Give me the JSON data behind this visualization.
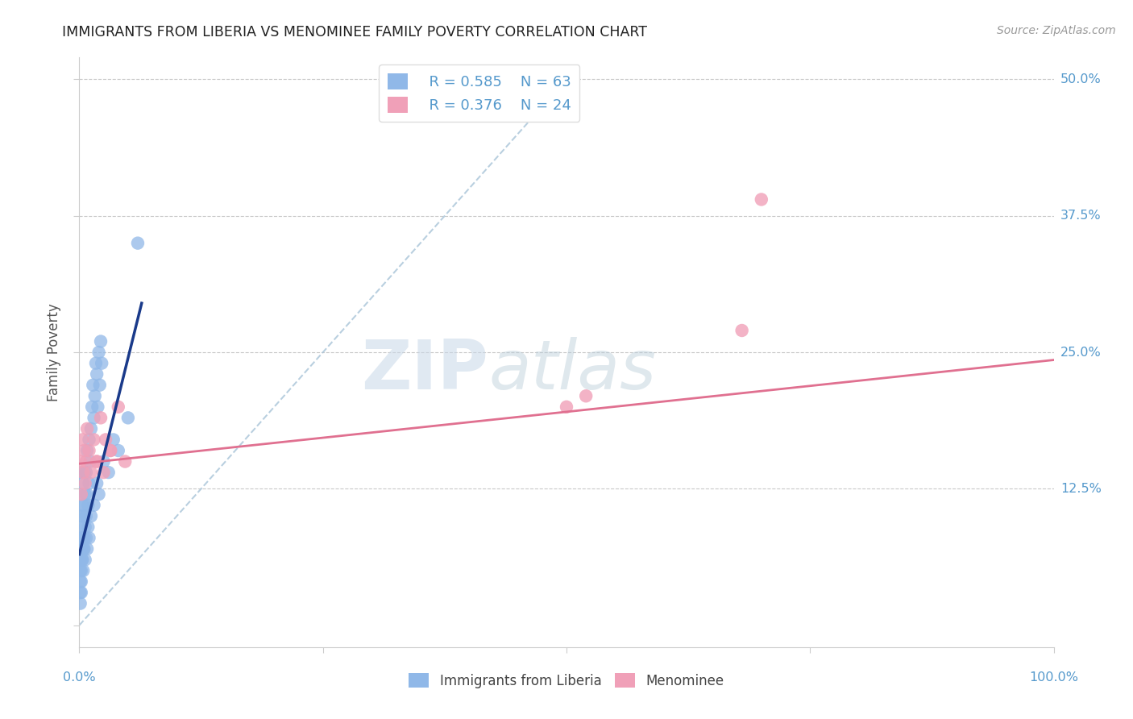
{
  "title": "IMMIGRANTS FROM LIBERIA VS MENOMINEE FAMILY POVERTY CORRELATION CHART",
  "source": "Source: ZipAtlas.com",
  "ylabel": "Family Poverty",
  "xlim": [
    0,
    1.0
  ],
  "ylim": [
    -0.02,
    0.52
  ],
  "yticks": [
    0.0,
    0.125,
    0.25,
    0.375,
    0.5
  ],
  "ytick_labels": [
    "",
    "12.5%",
    "25.0%",
    "37.5%",
    "50.0%"
  ],
  "xtick_labels_map": {
    "0.0": "0.0%",
    "1.0": "100.0%"
  },
  "blue_R": 0.585,
  "blue_N": 63,
  "pink_R": 0.376,
  "pink_N": 24,
  "blue_scatter_x": [
    0.001,
    0.001,
    0.001,
    0.001,
    0.002,
    0.002,
    0.002,
    0.002,
    0.003,
    0.003,
    0.003,
    0.003,
    0.004,
    0.004,
    0.004,
    0.005,
    0.005,
    0.005,
    0.006,
    0.006,
    0.007,
    0.007,
    0.008,
    0.008,
    0.009,
    0.01,
    0.01,
    0.011,
    0.012,
    0.013,
    0.014,
    0.015,
    0.016,
    0.017,
    0.018,
    0.019,
    0.02,
    0.021,
    0.022,
    0.023,
    0.001,
    0.001,
    0.002,
    0.003,
    0.004,
    0.005,
    0.006,
    0.007,
    0.008,
    0.009,
    0.01,
    0.012,
    0.015,
    0.018,
    0.02,
    0.025,
    0.03,
    0.035,
    0.04,
    0.05,
    0.001,
    0.002,
    0.06
  ],
  "blue_scatter_y": [
    0.04,
    0.06,
    0.08,
    0.1,
    0.05,
    0.07,
    0.09,
    0.12,
    0.06,
    0.08,
    0.11,
    0.14,
    0.07,
    0.1,
    0.13,
    0.08,
    0.11,
    0.14,
    0.09,
    0.12,
    0.1,
    0.14,
    0.12,
    0.16,
    0.11,
    0.13,
    0.17,
    0.15,
    0.18,
    0.2,
    0.22,
    0.19,
    0.21,
    0.24,
    0.23,
    0.2,
    0.25,
    0.22,
    0.26,
    0.24,
    0.03,
    0.05,
    0.04,
    0.06,
    0.05,
    0.07,
    0.06,
    0.08,
    0.07,
    0.09,
    0.08,
    0.1,
    0.11,
    0.13,
    0.12,
    0.15,
    0.14,
    0.17,
    0.16,
    0.19,
    0.02,
    0.03,
    0.35
  ],
  "pink_scatter_x": [
    0.001,
    0.002,
    0.003,
    0.004,
    0.005,
    0.006,
    0.007,
    0.008,
    0.01,
    0.012,
    0.015,
    0.018,
    0.022,
    0.027,
    0.032,
    0.04,
    0.047,
    0.032,
    0.025,
    0.018,
    0.5,
    0.52,
    0.68,
    0.7
  ],
  "pink_scatter_y": [
    0.15,
    0.12,
    0.17,
    0.14,
    0.16,
    0.13,
    0.15,
    0.18,
    0.16,
    0.14,
    0.17,
    0.15,
    0.19,
    0.17,
    0.16,
    0.2,
    0.15,
    0.16,
    0.14,
    0.15,
    0.2,
    0.21,
    0.27,
    0.39
  ],
  "blue_line_x": [
    0.0,
    0.064
  ],
  "blue_line_y": [
    0.065,
    0.295
  ],
  "pink_line_x": [
    0.0,
    1.0
  ],
  "pink_line_y": [
    0.148,
    0.243
  ],
  "diag_line_x": [
    0.0,
    0.5
  ],
  "diag_line_y": [
    0.0,
    0.5
  ],
  "blue_line_color": "#1a3a8a",
  "pink_line_color": "#e07090",
  "blue_scatter_color": "#90b8e8",
  "pink_scatter_color": "#f0a0b8",
  "diag_line_color": "#a8c4d8",
  "grid_color": "#c8c8c8",
  "background_color": "#ffffff",
  "title_color": "#222222",
  "axis_label_color": "#555555",
  "tick_color": "#5599cc"
}
